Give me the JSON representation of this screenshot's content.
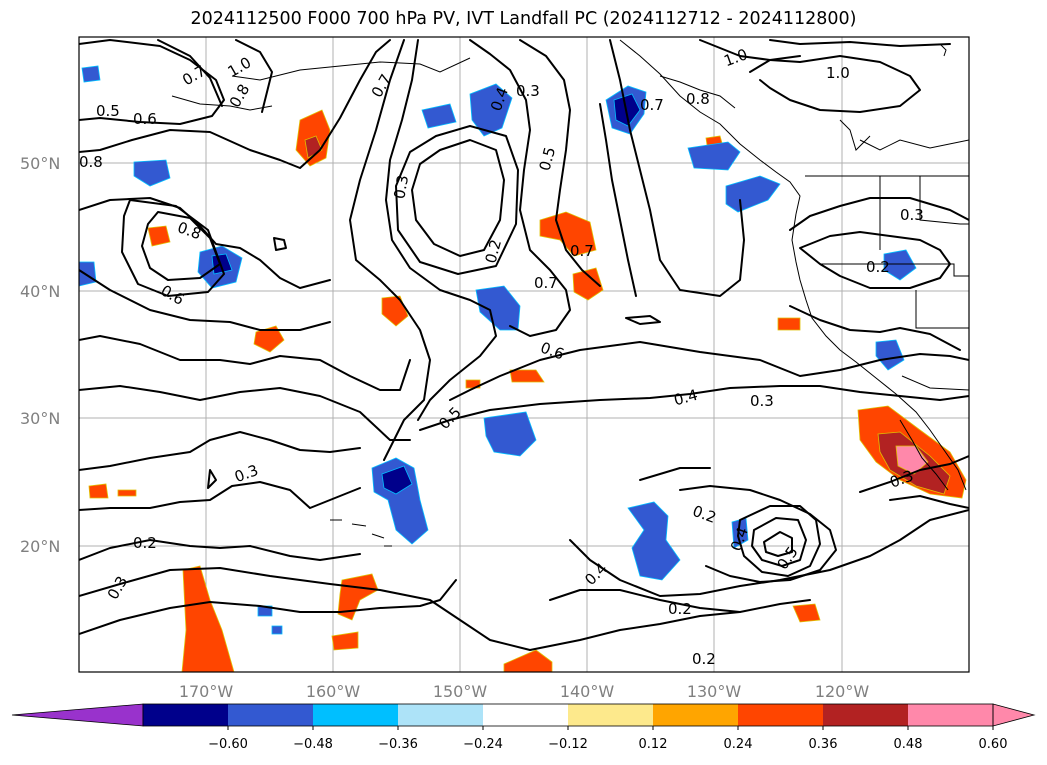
{
  "title": "2024112500 F000 700 hPa PV, IVT Landfall PC (2024112712 - 2024112800)",
  "lat_labels": [
    "50°N",
    "40°N",
    "30°N",
    "20°N"
  ],
  "lon_labels": [
    "170°W",
    "160°W",
    "150°W",
    "140°W",
    "130°W",
    "120°W"
  ],
  "colorbar": {
    "ticks": [
      "−0.60",
      "−0.48",
      "−0.36",
      "−0.24",
      "−0.12",
      "0.12",
      "0.24",
      "0.36",
      "0.48",
      "0.60"
    ],
    "colors": {
      "under": "#9932cc",
      "bins": [
        "#00008b",
        "#3359d1",
        "#00bfff",
        "#ade3f8",
        "#ffffff",
        "#fde98c",
        "#ffa500",
        "#ff4500",
        "#b22222",
        "#ff88aa"
      ]
    }
  },
  "contour_labels": [
    "0.7",
    "1.0",
    "0.8",
    "0.5",
    "0.6",
    "0.8",
    "0.8",
    "0.7",
    "0.4",
    "0.3",
    "0.3",
    "0.5",
    "0.2",
    "0.7",
    "0.7",
    "1.0",
    "1.0",
    "0.3",
    "0.2",
    "0.8",
    "0.6",
    "0.7",
    "0.6",
    "0.5",
    "0.4",
    "0.3",
    "0.3",
    "0.2",
    "0.4",
    "0.4",
    "0.5",
    "0.2",
    "0.3",
    "0.2",
    "0.2",
    "0.3"
  ]
}
